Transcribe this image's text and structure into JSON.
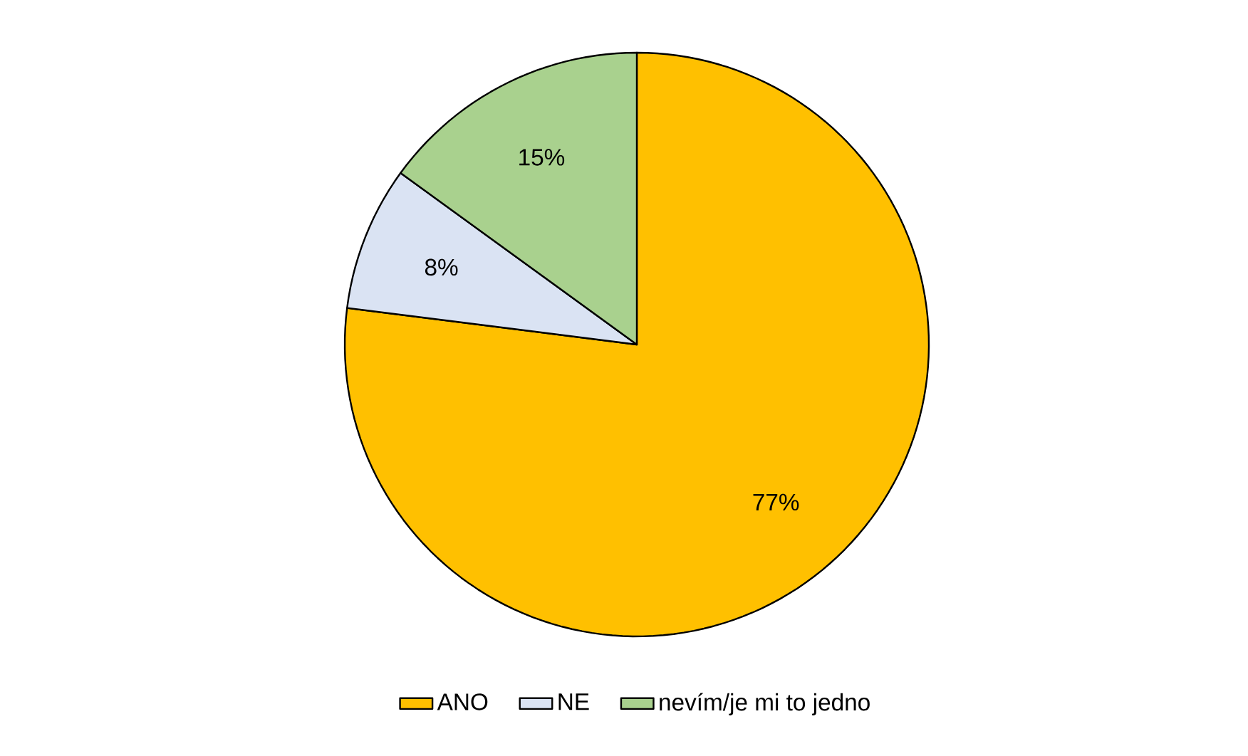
{
  "chart_data": {
    "type": "pie",
    "categories": [
      "ANO",
      "NE",
      "nevím/je mi to jedno"
    ],
    "values": [
      77,
      8,
      15
    ],
    "colors": [
      "#ffc000",
      "#dae3f3",
      "#a9d18e"
    ],
    "value_labels": [
      "77%",
      "8%",
      "15%"
    ],
    "legend": "bottom"
  }
}
